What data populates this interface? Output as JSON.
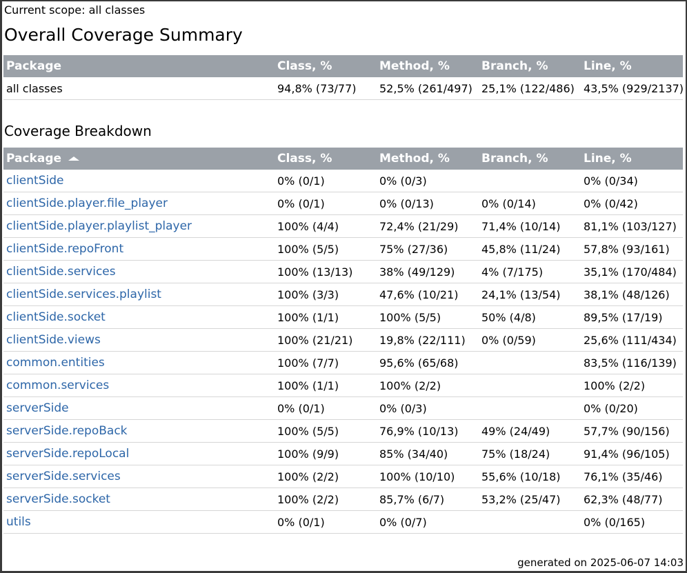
{
  "scope_text": "Current scope: all classes",
  "summary": {
    "title": "Overall Coverage Summary",
    "columns": [
      "Package",
      "Class, %",
      "Method, %",
      "Branch, %",
      "Line, %"
    ],
    "row": {
      "package": "all classes",
      "class": "94,8% (73/77)",
      "method": "52,5% (261/497)",
      "branch": "25,1% (122/486)",
      "line": "43,5% (929/2137)"
    }
  },
  "breakdown": {
    "title": "Coverage Breakdown",
    "columns": [
      "Package",
      "Class, %",
      "Method, %",
      "Branch, %",
      "Line, %"
    ],
    "sort_icon": "sort-ascending-icon",
    "rows": [
      {
        "package": "clientSide",
        "class": "0% (0/1)",
        "method": "0% (0/3)",
        "branch": "",
        "line": "0% (0/34)"
      },
      {
        "package": "clientSide.player.file_player",
        "class": "0% (0/1)",
        "method": "0% (0/13)",
        "branch": "0% (0/14)",
        "line": "0% (0/42)"
      },
      {
        "package": "clientSide.player.playlist_player",
        "class": "100% (4/4)",
        "method": "72,4% (21/29)",
        "branch": "71,4% (10/14)",
        "line": "81,1% (103/127)"
      },
      {
        "package": "clientSide.repoFront",
        "class": "100% (5/5)",
        "method": "75% (27/36)",
        "branch": "45,8% (11/24)",
        "line": "57,8% (93/161)"
      },
      {
        "package": "clientSide.services",
        "class": "100% (13/13)",
        "method": "38% (49/129)",
        "branch": "4% (7/175)",
        "line": "35,1% (170/484)"
      },
      {
        "package": "clientSide.services.playlist",
        "class": "100% (3/3)",
        "method": "47,6% (10/21)",
        "branch": "24,1% (13/54)",
        "line": "38,1% (48/126)"
      },
      {
        "package": "clientSide.socket",
        "class": "100% (1/1)",
        "method": "100% (5/5)",
        "branch": "50% (4/8)",
        "line": "89,5% (17/19)"
      },
      {
        "package": "clientSide.views",
        "class": "100% (21/21)",
        "method": "19,8% (22/111)",
        "branch": "0% (0/59)",
        "line": "25,6% (111/434)"
      },
      {
        "package": "common.entities",
        "class": "100% (7/7)",
        "method": "95,6% (65/68)",
        "branch": "",
        "line": "83,5% (116/139)"
      },
      {
        "package": "common.services",
        "class": "100% (1/1)",
        "method": "100% (2/2)",
        "branch": "",
        "line": "100% (2/2)"
      },
      {
        "package": "serverSide",
        "class": "0% (0/1)",
        "method": "0% (0/3)",
        "branch": "",
        "line": "0% (0/20)"
      },
      {
        "package": "serverSide.repoBack",
        "class": "100% (5/5)",
        "method": "76,9% (10/13)",
        "branch": "49% (24/49)",
        "line": "57,7% (90/156)"
      },
      {
        "package": "serverSide.repoLocal",
        "class": "100% (9/9)",
        "method": "85% (34/40)",
        "branch": "75% (18/24)",
        "line": "91,4% (96/105)"
      },
      {
        "package": "serverSide.services",
        "class": "100% (2/2)",
        "method": "100% (10/10)",
        "branch": "55,6% (10/18)",
        "line": "76,1% (35/46)"
      },
      {
        "package": "serverSide.socket",
        "class": "100% (2/2)",
        "method": "85,7% (6/7)",
        "branch": "53,2% (25/47)",
        "line": "62,3% (48/77)"
      },
      {
        "package": "utils",
        "class": "0% (0/1)",
        "method": "0% (0/7)",
        "branch": "",
        "line": "0% (0/165)"
      }
    ]
  },
  "footer_text": "generated on 2025-06-07 14:03",
  "colors": {
    "header_bg": "#9ba1a8",
    "link": "#2d66a8",
    "row_border": "#d6d6d6"
  }
}
